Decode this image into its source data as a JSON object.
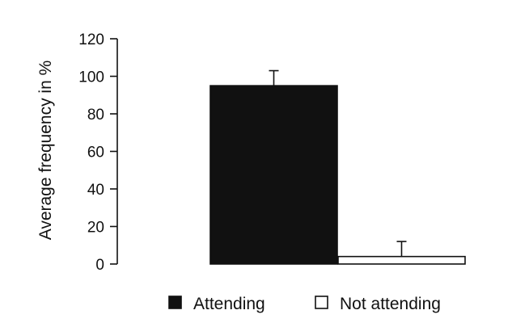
{
  "chart_data": {
    "type": "bar",
    "title": "",
    "ylabel": "Average frequency in %",
    "xlabel": "",
    "categories": [
      "Attending",
      "Not attending"
    ],
    "values": [
      95,
      4
    ],
    "error": [
      8,
      8
    ],
    "ylim": [
      0,
      120
    ],
    "yticks": [
      0,
      20,
      40,
      60,
      80,
      100,
      120
    ],
    "grid": false,
    "legend_position": "bottom",
    "legend": [
      {
        "label": "Attending",
        "fill": "#111111"
      },
      {
        "label": "Not attending",
        "fill": "#ffffff"
      }
    ],
    "bar_colors": [
      "#111111",
      "#ffffff"
    ]
  }
}
